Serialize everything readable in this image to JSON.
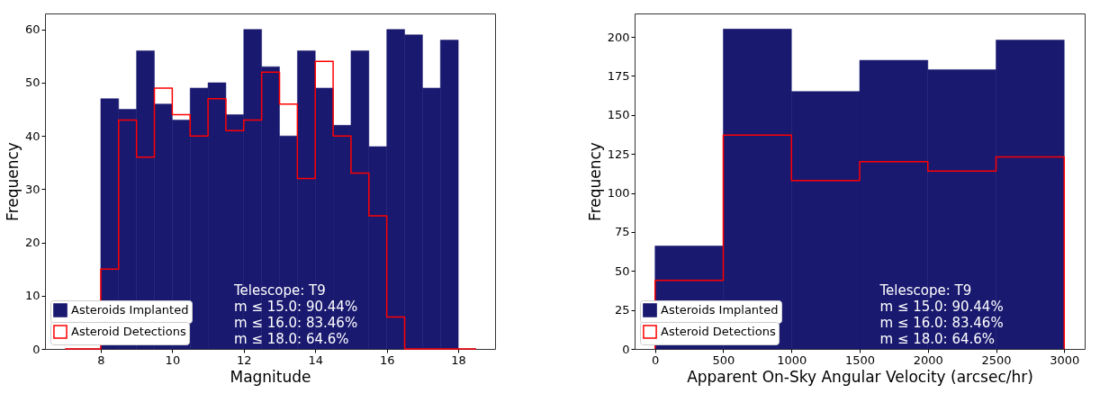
{
  "chart_data": [
    {
      "type": "histogram",
      "xlabel": "Magnitude",
      "ylabel": "Frequency",
      "bins": [
        7,
        7.5,
        8,
        8.5,
        9,
        9.5,
        10,
        10.5,
        11,
        11.5,
        12,
        12.5,
        13,
        13.5,
        14,
        14.5,
        15,
        15.5,
        16,
        16.5,
        17,
        17.5,
        18,
        18.5
      ],
      "series": [
        {
          "name": "Asteroids Implanted",
          "color": "#191970",
          "values": [
            0,
            0,
            47,
            45,
            56,
            46,
            43,
            49,
            50,
            44,
            60,
            53,
            40,
            56,
            49,
            42,
            56,
            38,
            60,
            59,
            49,
            58,
            0
          ]
        },
        {
          "name": "Asteroid Detections",
          "type": "step",
          "color": "#ff0000",
          "x": [
            7,
            7.5,
            8,
            8.5,
            9,
            9.5,
            10,
            10.5,
            11,
            11.5,
            12,
            12.5,
            13,
            13.5,
            14,
            14.5,
            15,
            15.5,
            16,
            16.5,
            17,
            17.5,
            18,
            18.5
          ],
          "values": [
            0,
            0,
            15,
            43,
            36,
            49,
            44,
            40,
            47,
            41,
            43,
            52,
            46,
            32,
            54,
            40,
            33,
            25,
            6,
            0,
            0,
            0,
            0,
            0
          ]
        }
      ],
      "xlim": [
        6.44,
        19.03
      ],
      "xticks": [
        8,
        10,
        12,
        14,
        16,
        18
      ],
      "ylim": [
        0,
        63
      ],
      "yticks": [
        0,
        10,
        20,
        30,
        40,
        50,
        60
      ],
      "legend": "bottom left",
      "annotations": [
        "Telescope: T9",
        "m ≤ 15.0: 90.44%",
        "m ≤ 16.0: 83.46%",
        "m ≤ 18.0: 64.6%"
      ]
    },
    {
      "type": "histogram",
      "xlabel": "Apparent On-Sky Angular Velocity (arcsec/hr)",
      "ylabel": "Frequency",
      "bins": [
        0,
        500,
        1000,
        1500,
        2000,
        2500,
        3000
      ],
      "series": [
        {
          "name": "Asteroids Implanted",
          "color": "#191970",
          "values": [
            66,
            205,
            165,
            185,
            179,
            198
          ]
        },
        {
          "name": "Asteroid Detections",
          "type": "step",
          "color": "#ff0000",
          "x": [
            0,
            0,
            500,
            1000,
            1500,
            2000,
            2500,
            3000
          ],
          "values": [
            0,
            44,
            137,
            108,
            120,
            114,
            123,
            0
          ]
        }
      ],
      "xlim": [
        -150,
        3150
      ],
      "xticks": [
        0,
        500,
        1000,
        1500,
        2000,
        2500,
        3000
      ],
      "ylim": [
        0,
        215
      ],
      "yticks": [
        0,
        25,
        50,
        75,
        100,
        125,
        150,
        175,
        200
      ],
      "legend": "bottom left",
      "annotations": [
        "Telescope: T9",
        "m ≤ 15.0: 90.44%",
        "m ≤ 16.0: 83.46%",
        "m ≤ 18.0: 64.6%"
      ]
    }
  ]
}
